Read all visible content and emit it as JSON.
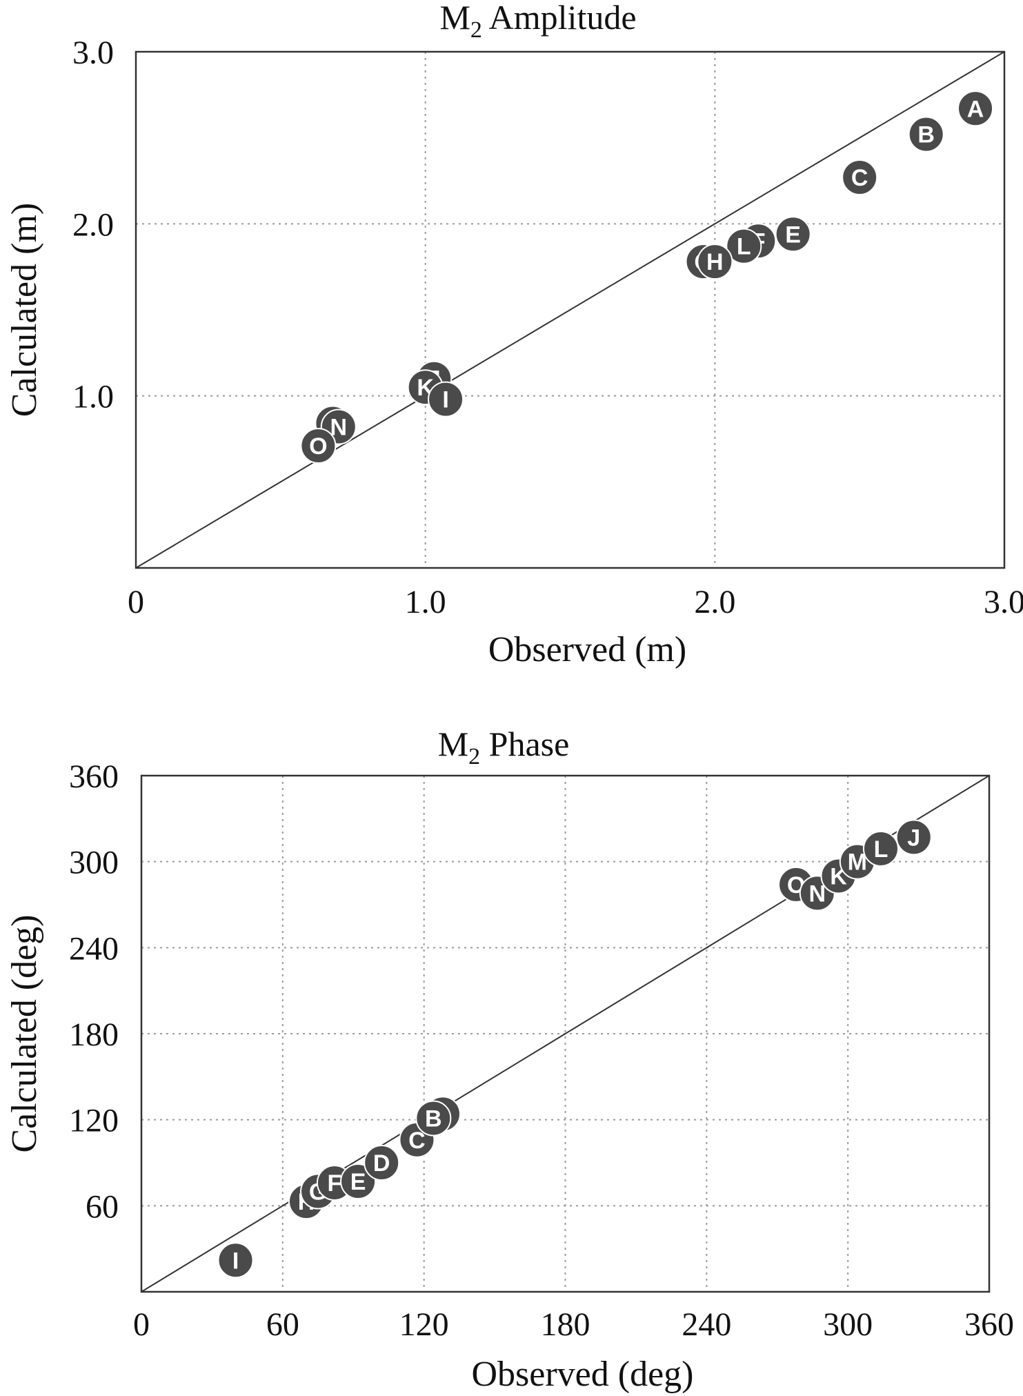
{
  "chart_data": [
    {
      "type": "scatter",
      "title": "M",
      "title_subscript": "2",
      "title_suffix": " Amplitude",
      "xlabel": "Observed (m)",
      "ylabel": "Calculated (m)",
      "xlim": [
        0,
        3
      ],
      "ylim": [
        0,
        3
      ],
      "xticks": [
        0,
        1,
        2,
        3
      ],
      "yticks": [
        1,
        2,
        3
      ],
      "xtick_labels": [
        "0",
        "1.0",
        "2.0",
        "3.0"
      ],
      "ytick_labels": [
        "1.0",
        "2.0",
        "3.0"
      ],
      "grid": true,
      "reference_line": "y = x",
      "points": [
        {
          "label": "A",
          "x": 2.9,
          "y": 2.67
        },
        {
          "label": "B",
          "x": 2.73,
          "y": 2.52
        },
        {
          "label": "C",
          "x": 2.5,
          "y": 2.27
        },
        {
          "label": "E",
          "x": 2.27,
          "y": 1.94
        },
        {
          "label": "F",
          "x": 2.15,
          "y": 1.9
        },
        {
          "label": "L",
          "x": 2.1,
          "y": 1.87
        },
        {
          "label": "G",
          "x": 1.96,
          "y": 1.78
        },
        {
          "label": "H",
          "x": 2.0,
          "y": 1.78
        },
        {
          "label": "J",
          "x": 1.03,
          "y": 1.1
        },
        {
          "label": "K",
          "x": 1.0,
          "y": 1.05
        },
        {
          "label": "I",
          "x": 1.07,
          "y": 0.98
        },
        {
          "label": "M",
          "x": 0.68,
          "y": 0.84
        },
        {
          "label": "N",
          "x": 0.7,
          "y": 0.82
        },
        {
          "label": "O",
          "x": 0.63,
          "y": 0.71
        }
      ]
    },
    {
      "type": "scatter",
      "title": "M",
      "title_subscript": "2",
      "title_suffix": " Phase",
      "xlabel": "Observed (deg)",
      "ylabel": "Calculated (deg)",
      "xlim": [
        0,
        360
      ],
      "ylim": [
        0,
        360
      ],
      "xticks": [
        0,
        60,
        120,
        180,
        240,
        300,
        360
      ],
      "yticks": [
        60,
        120,
        180,
        240,
        300,
        360
      ],
      "xtick_labels": [
        "0",
        "60",
        "120",
        "180",
        "240",
        "300",
        "360"
      ],
      "ytick_labels": [
        "60",
        "120",
        "180",
        "240",
        "300",
        "360"
      ],
      "grid": true,
      "reference_line": "y = x",
      "points": [
        {
          "label": "I",
          "x": 40,
          "y": 22
        },
        {
          "label": "H",
          "x": 70,
          "y": 63
        },
        {
          "label": "G",
          "x": 75,
          "y": 70
        },
        {
          "label": "F",
          "x": 82,
          "y": 76
        },
        {
          "label": "E",
          "x": 92,
          "y": 77
        },
        {
          "label": "D",
          "x": 102,
          "y": 90
        },
        {
          "label": "C",
          "x": 117,
          "y": 106
        },
        {
          "label": "A",
          "x": 128,
          "y": 124
        },
        {
          "label": "B",
          "x": 124,
          "y": 121
        },
        {
          "label": "O",
          "x": 278,
          "y": 284
        },
        {
          "label": "N",
          "x": 287,
          "y": 278
        },
        {
          "label": "K",
          "x": 296,
          "y": 290
        },
        {
          "label": "M",
          "x": 304,
          "y": 300
        },
        {
          "label": "L",
          "x": 314,
          "y": 309
        },
        {
          "label": "J",
          "x": 328,
          "y": 317
        }
      ]
    }
  ]
}
